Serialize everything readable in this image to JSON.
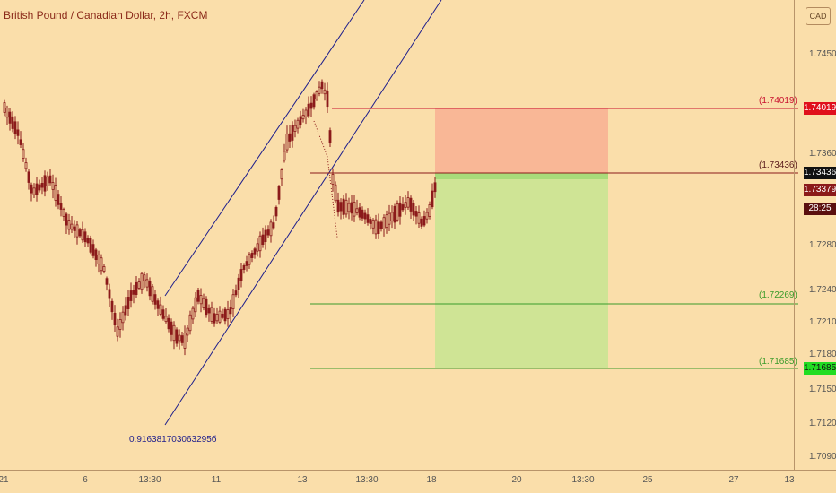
{
  "header": {
    "title": "British Pound / Canadian Dollar, 2h, FXCM",
    "currency": "CAD"
  },
  "y_axis": {
    "ticks": [
      "1.74500",
      "1.73600",
      "1.72800",
      "1.72400",
      "1.72100",
      "1.71800",
      "1.71500",
      "1.71200",
      "1.70900"
    ]
  },
  "x_axis": {
    "ticks": [
      "21",
      "6",
      "13:30",
      "11",
      "13",
      "13:30",
      "18",
      "20",
      "13:30",
      "25",
      "27",
      "13"
    ]
  },
  "levels": {
    "stop": {
      "label": "(1.74019)",
      "tag": "1.74019"
    },
    "entry": {
      "label": "(1.73436)",
      "tag": "1.73436"
    },
    "tp1": {
      "label": "(1.72269)"
    },
    "tp2": {
      "label": "(1.71685)",
      "tag": "1.71685"
    }
  },
  "price_tags": {
    "bid": "1.73379",
    "timer": "28:25"
  },
  "annotation": {
    "ratio": "0.916381703063295б"
  },
  "colors": {
    "background": "#fadeaa",
    "stop_zone": "#f9b796",
    "profit_zone": "#cfe495",
    "stop_line": "#c8102e",
    "target_line": "#3a9b2a",
    "channel": "#1e1e8c",
    "candle": "#8b1a1a"
  }
}
